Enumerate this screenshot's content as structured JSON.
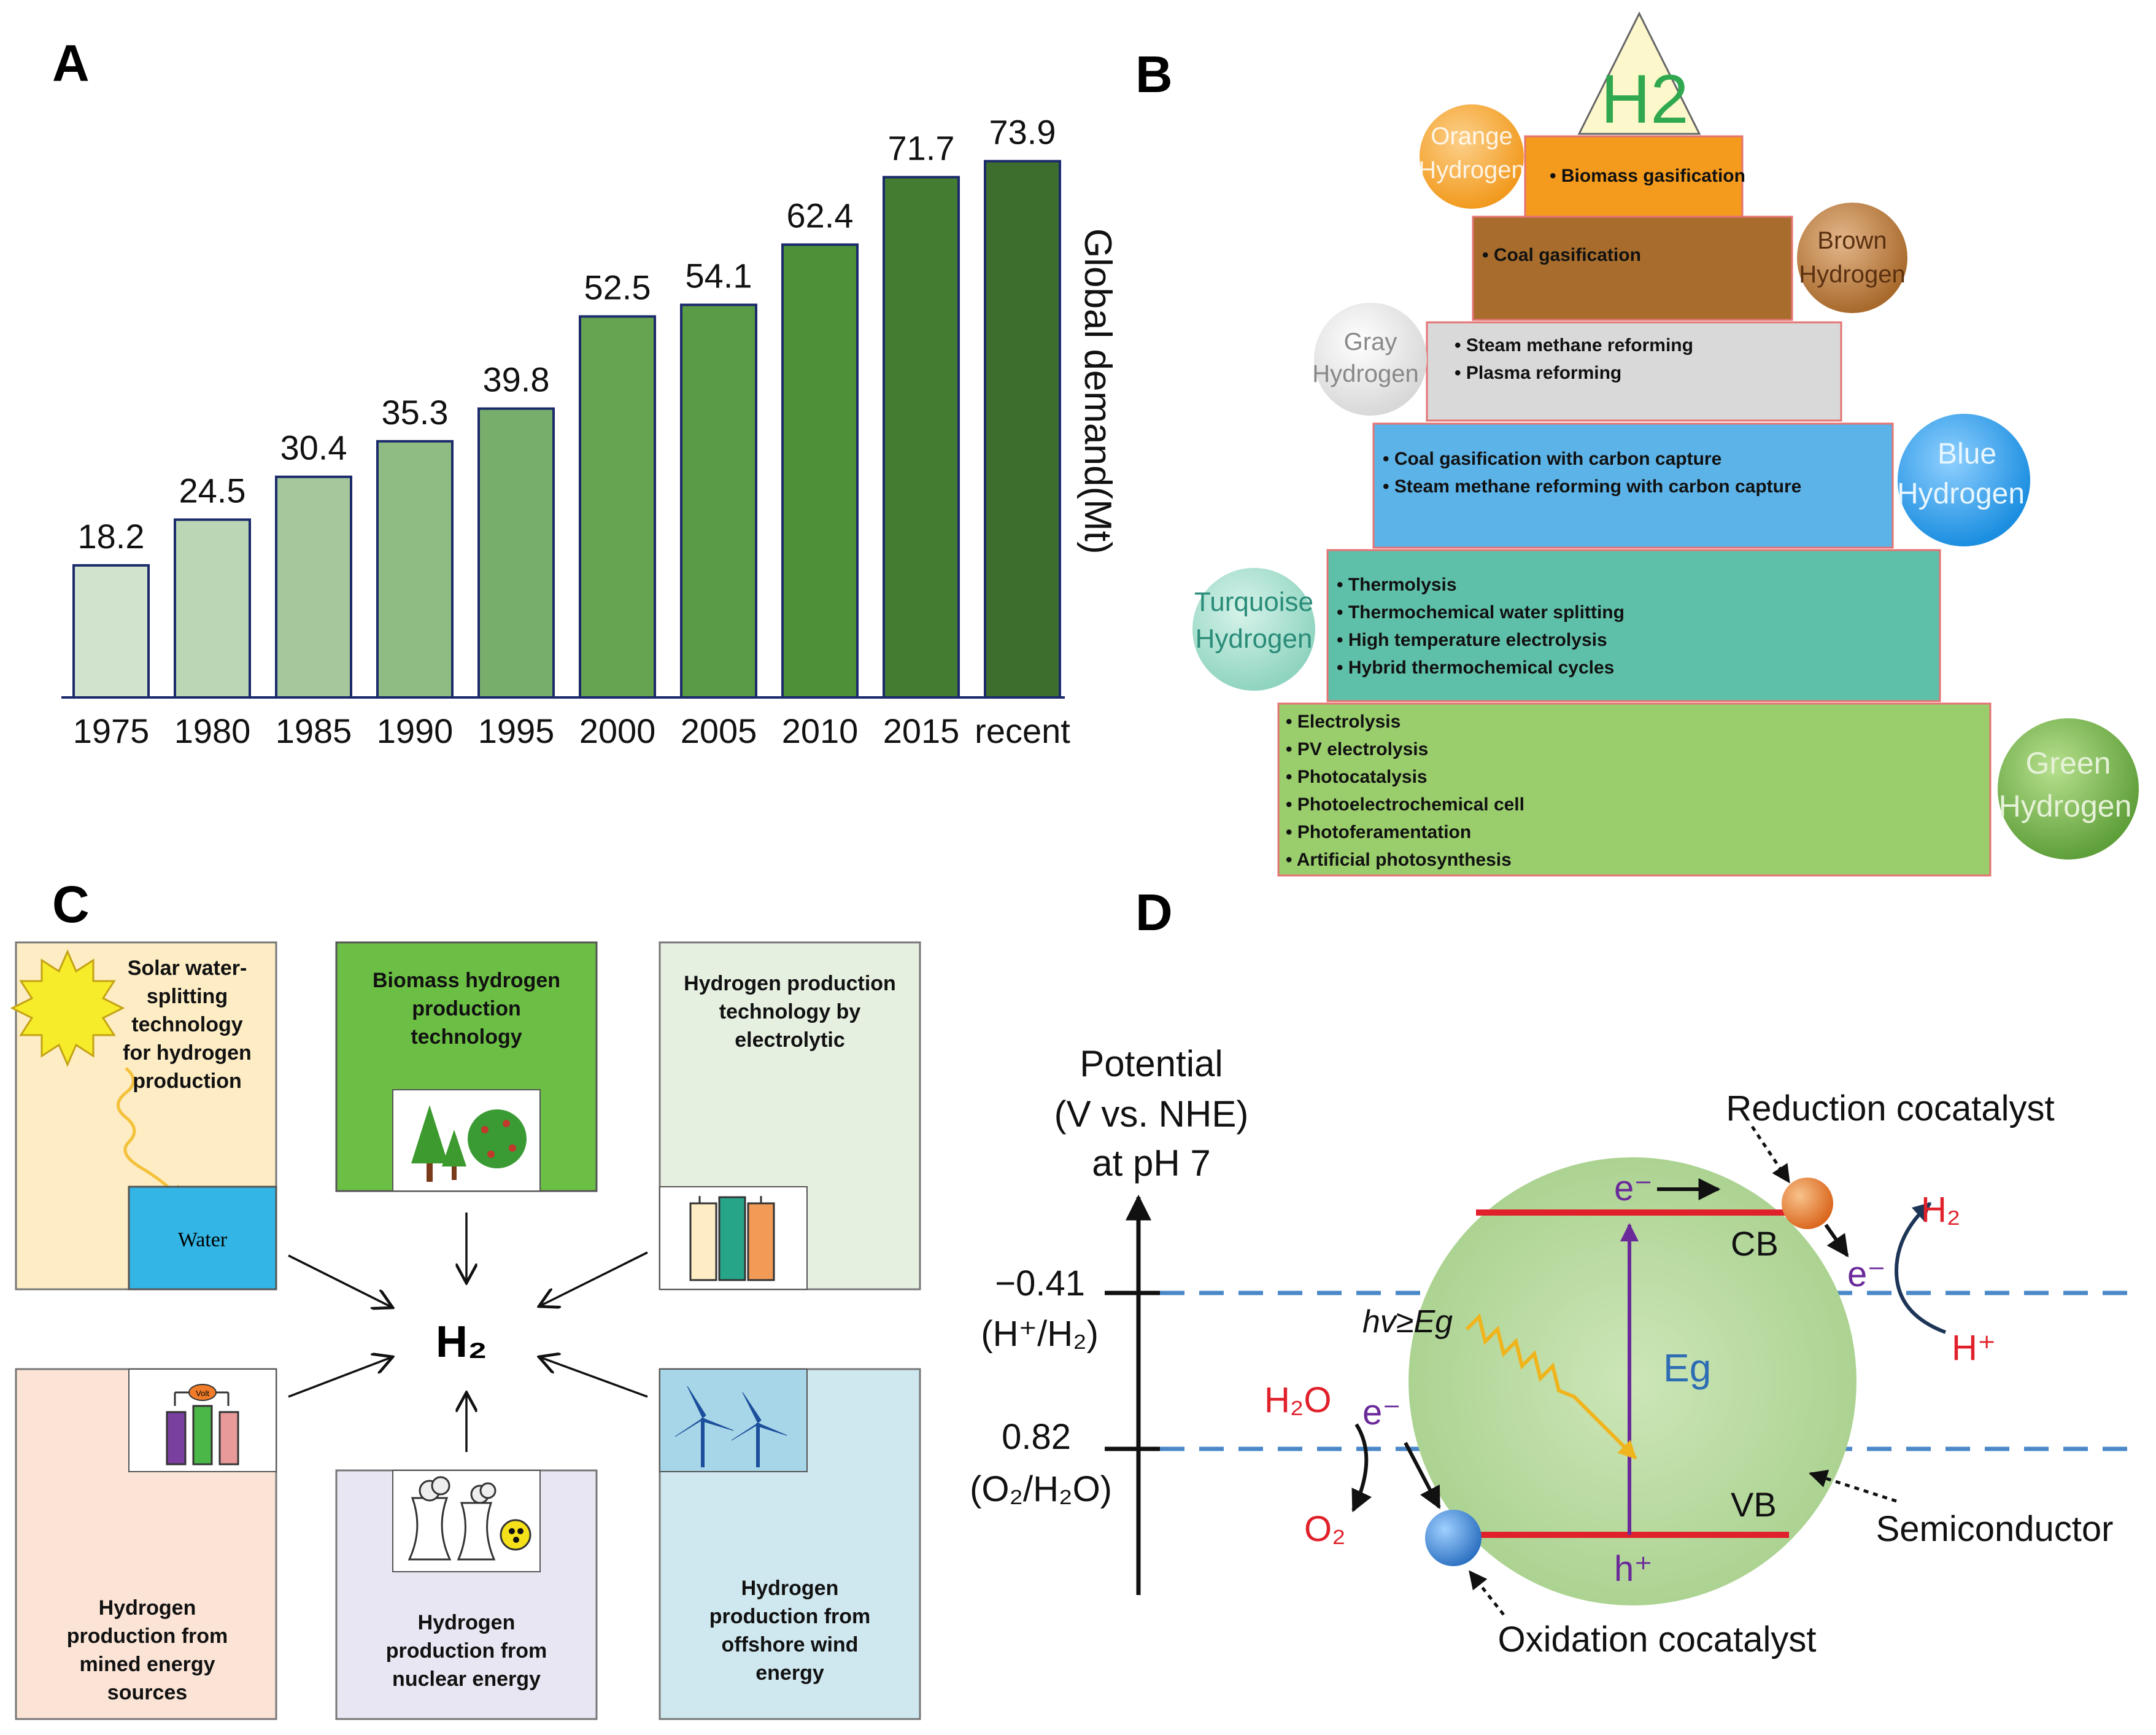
{
  "panels": {
    "a": "A",
    "b": "B",
    "c": "C",
    "d": "D"
  },
  "chart_data": {
    "type": "bar",
    "categories": [
      "1975",
      "1980",
      "1985",
      "1990",
      "1995",
      "2000",
      "2005",
      "2010",
      "2015",
      "recent"
    ],
    "values": [
      18.2,
      24.5,
      30.4,
      35.3,
      39.8,
      52.5,
      54.1,
      62.4,
      71.7,
      73.9
    ],
    "value_labels": [
      "18.2",
      "24.5",
      "30.4",
      "35.3",
      "39.8",
      "52.5",
      "54.1",
      "62.4",
      "71.7",
      "73.9"
    ],
    "ylabel": "Global demand(Mt)",
    "ylim": [
      0,
      80
    ],
    "colors": [
      "#d1e3cd",
      "#bbd6b4",
      "#a4c89b",
      "#8fbc82",
      "#78ae6b",
      "#67a452",
      "#5a9b45",
      "#4d9038",
      "#447d31",
      "#3e6e2d"
    ]
  },
  "pyramid": {
    "apex_label": "H2",
    "tiers": [
      {
        "name": "orange",
        "badge": [
          "Orange",
          "Hydrogen"
        ],
        "items": [
          "Biomass gasification"
        ]
      },
      {
        "name": "brown",
        "badge": [
          "Brown",
          "Hydrogen"
        ],
        "items": [
          "Coal gasification"
        ]
      },
      {
        "name": "gray",
        "badge": [
          "Gray",
          "Hydrogen"
        ],
        "items": [
          "Steam methane reforming",
          "Plasma reforming"
        ]
      },
      {
        "name": "blue",
        "badge": [
          "Blue",
          "Hydrogen"
        ],
        "items": [
          "Coal gasification with carbon capture",
          "Steam methane reforming with carbon capture"
        ]
      },
      {
        "name": "turquoise",
        "badge": [
          "Turquoise",
          "Hydrogen"
        ],
        "items": [
          "Thermolysis",
          "Thermochemical water splitting",
          "High temperature electrolysis",
          "Hybrid thermochemical cycles"
        ]
      },
      {
        "name": "green",
        "badge": [
          "Green",
          "Hydrogen"
        ],
        "items": [
          "Electrolysis",
          "PV electrolysis",
          "Photocatalysis",
          "Photoelectrochemical cell",
          "Photoferamentation",
          "Artificial photosynthesis"
        ]
      }
    ]
  },
  "sources": {
    "center": "H₂",
    "solar": [
      "Solar water-",
      "splitting",
      "technology",
      "for hydrogen",
      "production"
    ],
    "water_label": "Water",
    "biomass": [
      "Biomass hydrogen",
      "production",
      "technology"
    ],
    "electrolytic": [
      "Hydrogen production",
      "technology by",
      "electrolytic"
    ],
    "mined": [
      "Hydrogen",
      "production from",
      "mined energy",
      "sources"
    ],
    "nuclear": [
      "Hydrogen",
      "production from",
      "nuclear energy"
    ],
    "wind": [
      "Hydrogen",
      "production from",
      "offshore wind",
      "energy"
    ],
    "volt_label": "Volt"
  },
  "photocatalysis": {
    "axis_title": [
      "Potential",
      "(V vs. NHE)",
      "at pH 7"
    ],
    "level1_value": "−0.41",
    "level1_couple": "(H⁺/H₂)",
    "level2_value": "0.82",
    "level2_couple": "(O₂/H₂O)",
    "reduction_cocatalyst": "Reduction cocatalyst",
    "oxidation_cocatalyst": "Oxidation cocatalyst",
    "semiconductor": "Semiconductor",
    "cb": "CB",
    "vb": "VB",
    "electron": "e⁻",
    "hole": "h⁺",
    "bandgap": "Eg",
    "photon": "hv≥Eg",
    "h2_product": "H₂",
    "h_plus": "H⁺",
    "h2o": "H₂O",
    "o2": "O₂"
  }
}
